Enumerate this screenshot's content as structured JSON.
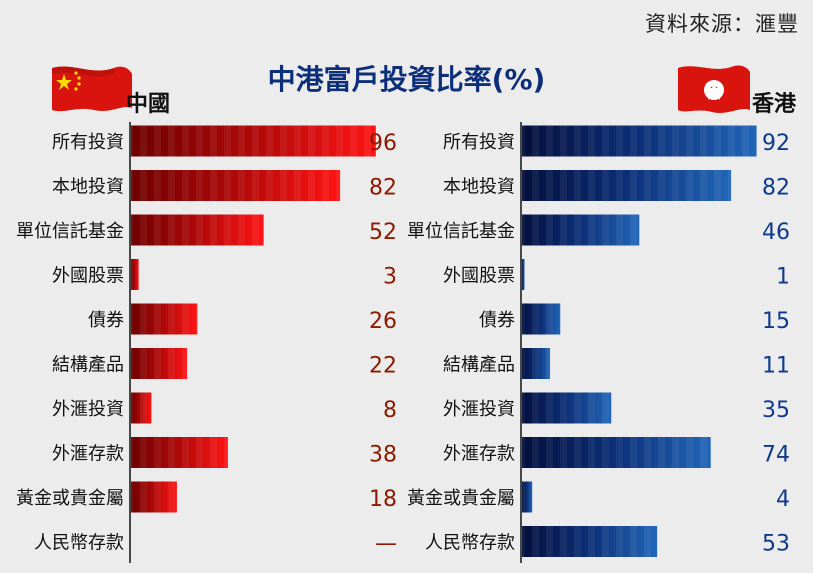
{
  "source": "資料來源：滙豐",
  "title": "中港富戶投資比率(%)",
  "colors": {
    "china_bar_dark": "#7a0000",
    "china_bar_light": "#ff1010",
    "china_value": "#8b1a00",
    "hk_bar_dark": "#05154a",
    "hk_bar_light": "#1e5fb0",
    "hk_value": "#0d3a8c"
  },
  "chart_data": [
    {
      "type": "bar",
      "orientation": "horizontal",
      "region": "中國",
      "icon": "china-flag-icon",
      "categories": [
        "所有投資",
        "本地投資",
        "單位信託基金",
        "外國股票",
        "債券",
        "結構產品",
        "外滙投資",
        "外滙存款",
        "黃金或貴金屬",
        "人民幣存款"
      ],
      "values": [
        96,
        82,
        52,
        3,
        26,
        22,
        8,
        38,
        18,
        null
      ],
      "labels": [
        "96",
        "82",
        "52",
        "3",
        "26",
        "22",
        "8",
        "38",
        "18",
        "—"
      ],
      "xlim": [
        0,
        100
      ]
    },
    {
      "type": "bar",
      "orientation": "horizontal",
      "region": "香港",
      "icon": "hong-kong-flag-icon",
      "categories": [
        "所有投資",
        "本地投資",
        "單位信託基金",
        "外國股票",
        "債券",
        "結構產品",
        "外滙投資",
        "外滙存款",
        "黃金或貴金屬",
        "人民幣存款"
      ],
      "values": [
        92,
        82,
        46,
        1,
        15,
        11,
        35,
        74,
        4,
        53
      ],
      "labels": [
        "92",
        "82",
        "46",
        "1",
        "15",
        "11",
        "35",
        "74",
        "4",
        "53"
      ],
      "xlim": [
        0,
        100
      ]
    }
  ]
}
